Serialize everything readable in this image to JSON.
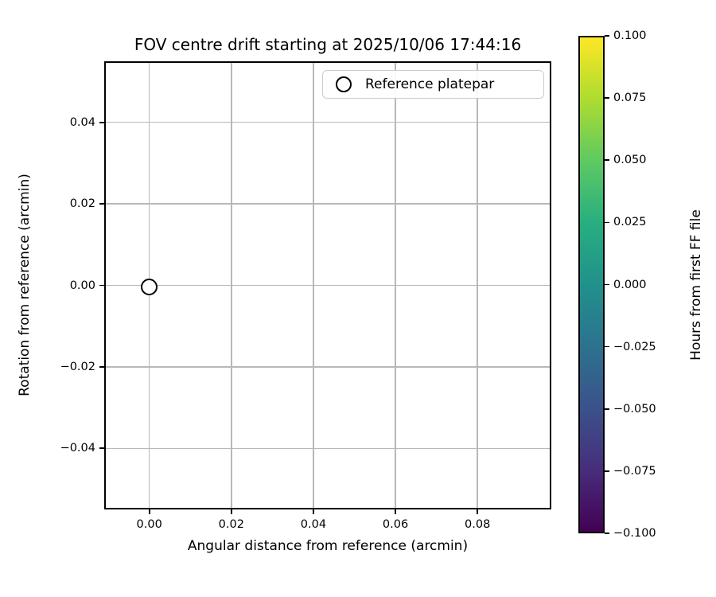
{
  "chart_data": {
    "type": "scatter",
    "title": "FOV centre drift starting at 2025/10/06 17:44:16",
    "xlabel": "Angular distance from reference (arcmin)",
    "ylabel": "Rotation from reference (arcmin)",
    "xlim": [
      -0.011,
      0.098
    ],
    "ylim": [
      -0.055,
      0.055
    ],
    "grid": true,
    "x_ticks": [
      {
        "value": 0.0,
        "label": "0.00"
      },
      {
        "value": 0.02,
        "label": "0.02"
      },
      {
        "value": 0.04,
        "label": "0.04"
      },
      {
        "value": 0.06,
        "label": "0.06"
      },
      {
        "value": 0.08,
        "label": "0.08"
      }
    ],
    "y_ticks": [
      {
        "value": 0.04,
        "label": "0.04"
      },
      {
        "value": 0.02,
        "label": "0.02"
      },
      {
        "value": 0.0,
        "label": "0.00"
      },
      {
        "value": -0.02,
        "label": "−0.02"
      },
      {
        "value": -0.04,
        "label": "−0.04"
      }
    ],
    "legend": {
      "position": "upper right",
      "entries": [
        {
          "label": "Reference platepar",
          "marker": "open-circle",
          "edge_color": "#000000"
        }
      ]
    },
    "series": [
      {
        "name": "Reference platepar",
        "marker": "open-circle",
        "edge_color": "#000000",
        "face_color": "#ffffff",
        "points": [
          {
            "x": 0.0,
            "y": 0.0
          }
        ]
      }
    ],
    "colorbar": {
      "label": "Hours from first FF file",
      "colormap": "viridis",
      "min": -0.1,
      "max": 0.1,
      "ticks": [
        {
          "value": 0.1,
          "label": "0.100"
        },
        {
          "value": 0.075,
          "label": "0.075"
        },
        {
          "value": 0.05,
          "label": "0.050"
        },
        {
          "value": 0.025,
          "label": "0.025"
        },
        {
          "value": 0.0,
          "label": "0.000"
        },
        {
          "value": -0.025,
          "label": "−0.025"
        },
        {
          "value": -0.05,
          "label": "−0.050"
        },
        {
          "value": -0.075,
          "label": "−0.075"
        },
        {
          "value": -0.1,
          "label": "−0.100"
        }
      ],
      "colors_bottom_to_top": [
        "#440154",
        "#472d7b",
        "#3b528b",
        "#2c728e",
        "#21918c",
        "#28ae80",
        "#5ec962",
        "#addc30",
        "#fde725"
      ]
    },
    "colors": {
      "grid": "#b8b8b8",
      "frame": "#000000",
      "text": "#000000",
      "legend_border": "#cccccc"
    }
  }
}
